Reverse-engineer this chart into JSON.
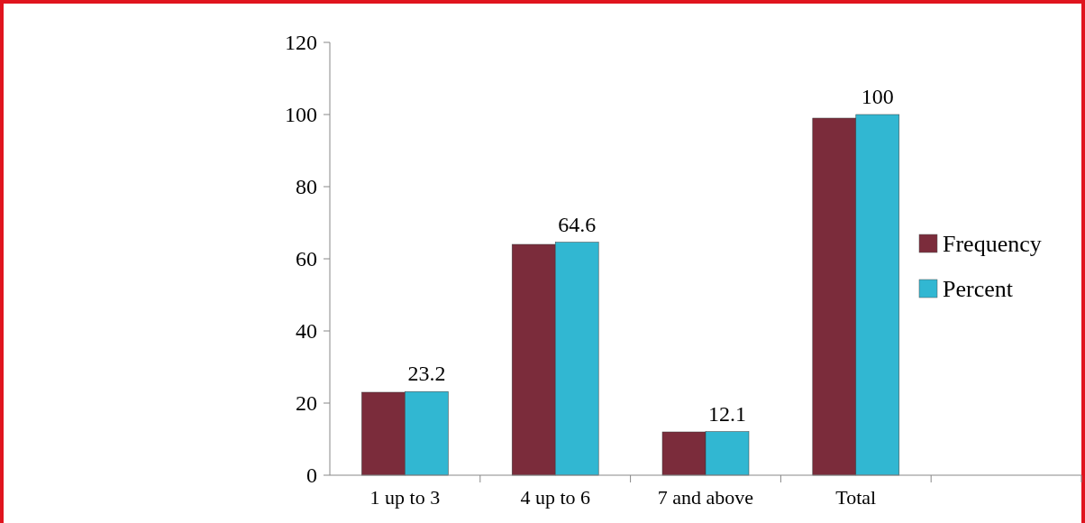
{
  "chart_data": {
    "type": "bar",
    "categories": [
      "1 up to 3",
      "4 up to 6",
      "7 and above",
      "Total",
      null
    ],
    "series": [
      {
        "name": "Frequency",
        "color": "#7b2c3b",
        "values": [
          23,
          64,
          12,
          99,
          null
        ]
      },
      {
        "name": "Percent",
        "color": "#31b7d2",
        "values": [
          23.2,
          64.6,
          12.1,
          100,
          null
        ],
        "value_labels": [
          "23.2",
          "64.6",
          "12.1",
          "100",
          null
        ]
      }
    ],
    "ylim": [
      0,
      120
    ],
    "yticks": [
      0,
      20,
      40,
      60,
      80,
      100,
      120
    ],
    "grid": false,
    "legend": "right"
  }
}
